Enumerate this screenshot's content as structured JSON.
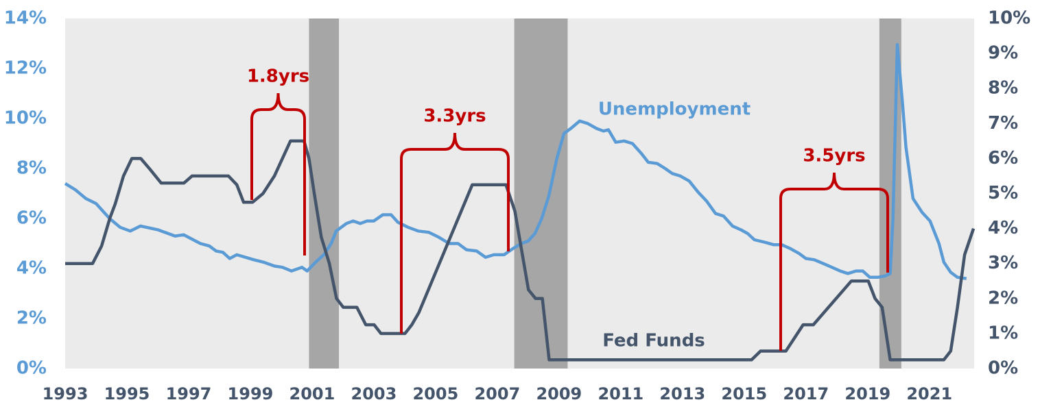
{
  "chart_data": {
    "type": "line",
    "xlim": [
      1993,
      2022.45
    ],
    "xticks": [
      1993,
      1995,
      1997,
      1999,
      2001,
      2003,
      2005,
      2007,
      2009,
      2011,
      2013,
      2015,
      2017,
      2019,
      2021
    ],
    "ylim": [
      0,
      14
    ],
    "yticks": [
      {
        "value": 0,
        "label": "0%"
      },
      {
        "value": 2,
        "label": "2%"
      },
      {
        "value": 4,
        "label": "4%"
      },
      {
        "value": 6,
        "label": "6%"
      },
      {
        "value": 8,
        "label": "8%"
      },
      {
        "value": 10,
        "label": "10%"
      },
      {
        "value": 12,
        "label": "12%"
      },
      {
        "value": 14,
        "label": "14%"
      }
    ],
    "y2lim": [
      0,
      10
    ],
    "y2ticks": [
      {
        "value": 0,
        "label": "0%"
      },
      {
        "value": 1,
        "label": "1%"
      },
      {
        "value": 2,
        "label": "2%"
      },
      {
        "value": 3,
        "label": "3%"
      },
      {
        "value": 4,
        "label": "4%"
      },
      {
        "value": 5,
        "label": "5%"
      },
      {
        "value": 6,
        "label": "6%"
      },
      {
        "value": 7,
        "label": "7%"
      },
      {
        "value": 8,
        "label": "8%"
      },
      {
        "value": 9,
        "label": "9%"
      },
      {
        "value": 10,
        "label": "10%"
      }
    ],
    "shaded_ranges": [
      [
        2000.9,
        2001.87
      ],
      [
        2007.55,
        2009.28
      ],
      [
        2019.38,
        2020.09
      ]
    ],
    "shade_color": "#a6a6a6",
    "background": "#ebebeb",
    "series": [
      {
        "name": "Unemployment",
        "color": "#5b9bd5",
        "x": [
          1993.0,
          1993.33,
          1993.67,
          1994.0,
          1994.44,
          1994.78,
          1995.11,
          1995.44,
          1996.0,
          1996.56,
          1996.84,
          1997.38,
          1997.67,
          1997.89,
          1998.11,
          1998.33,
          1998.56,
          1999.11,
          1999.44,
          1999.78,
          2000.04,
          2000.33,
          2000.67,
          2000.84,
          2001.11,
          2001.38,
          2001.62,
          2001.78,
          2002.11,
          2002.33,
          2002.56,
          2002.78,
          2003.0,
          2003.29,
          2003.56,
          2003.78,
          2004.11,
          2004.44,
          2004.78,
          2005.11,
          2005.44,
          2005.73,
          2006.0,
          2006.33,
          2006.62,
          2006.89,
          2007.22,
          2007.51,
          2007.78,
          2008.0,
          2008.22,
          2008.44,
          2008.67,
          2008.93,
          2009.16,
          2009.38,
          2009.67,
          2009.93,
          2010.22,
          2010.44,
          2010.6,
          2010.84,
          2011.11,
          2011.38,
          2011.67,
          2011.89,
          2012.18,
          2012.44,
          2012.67,
          2012.93,
          2013.22,
          2013.51,
          2013.78,
          2014.07,
          2014.33,
          2014.62,
          2014.89,
          2015.11,
          2015.33,
          2015.67,
          2015.96,
          2016.22,
          2016.49,
          2016.78,
          2017.0,
          2017.27,
          2017.56,
          2017.84,
          2018.11,
          2018.36,
          2018.62,
          2018.84,
          2019.07,
          2019.33,
          2019.56,
          2019.73,
          2019.82,
          2019.96,
          2020.13,
          2020.24,
          2020.47,
          2020.76,
          2021.02,
          2021.31,
          2021.47,
          2021.69,
          2021.91,
          2022.2
        ],
        "values": [
          7.4,
          7.15,
          6.8,
          6.6,
          6.0,
          5.65,
          5.5,
          5.7,
          5.55,
          5.3,
          5.35,
          5.0,
          4.9,
          4.7,
          4.65,
          4.4,
          4.55,
          4.35,
          4.25,
          4.1,
          4.05,
          3.9,
          4.05,
          3.9,
          4.25,
          4.55,
          5.0,
          5.5,
          5.8,
          5.9,
          5.8,
          5.9,
          5.9,
          6.15,
          6.15,
          5.85,
          5.65,
          5.5,
          5.45,
          5.25,
          5.0,
          5.0,
          4.75,
          4.7,
          4.45,
          4.55,
          4.55,
          4.8,
          5.0,
          5.1,
          5.4,
          6.0,
          6.9,
          8.4,
          9.4,
          9.6,
          9.9,
          9.8,
          9.6,
          9.5,
          9.55,
          9.05,
          9.1,
          9.0,
          8.6,
          8.25,
          8.2,
          8.0,
          7.8,
          7.7,
          7.5,
          7.05,
          6.7,
          6.2,
          6.1,
          5.7,
          5.55,
          5.4,
          5.15,
          5.05,
          4.95,
          4.95,
          4.8,
          4.6,
          4.4,
          4.35,
          4.2,
          4.05,
          3.9,
          3.8,
          3.9,
          3.9,
          3.65,
          3.65,
          3.7,
          3.8,
          6.0,
          12.95,
          10.6,
          8.85,
          6.8,
          6.25,
          5.9,
          5.0,
          4.25,
          3.85,
          3.65,
          3.6
        ]
      },
      {
        "name": "Fed Funds",
        "color": "#44546a",
        "axis": "y2",
        "x": [
          1993.0,
          1993.89,
          1994.18,
          1994.45,
          1994.62,
          1994.89,
          1995.16,
          1995.45,
          1995.74,
          1996.11,
          1996.85,
          1997.11,
          1998.29,
          1998.56,
          1998.78,
          1999.07,
          1999.41,
          1999.78,
          2000.3,
          2000.74,
          2000.9,
          2001.07,
          2001.3,
          2001.56,
          2001.79,
          2002.01,
          2002.45,
          2002.74,
          2003.01,
          2003.23,
          2004.01,
          2004.23,
          2004.46,
          2006.19,
          2007.28,
          2007.57,
          2008.01,
          2008.24,
          2008.46,
          2008.68,
          2015.24,
          2015.53,
          2016.35,
          2016.91,
          2017.24,
          2018.47,
          2019.02,
          2019.24,
          2019.47,
          2019.73,
          2021.47,
          2021.69,
          2021.91,
          2022.14,
          2022.43
        ],
        "values": [
          3.0,
          3.0,
          3.5,
          4.3,
          4.7,
          5.5,
          6.0,
          6.0,
          5.7,
          5.3,
          5.3,
          5.5,
          5.5,
          5.25,
          4.75,
          4.75,
          5.0,
          5.5,
          6.5,
          6.5,
          6.0,
          5.0,
          3.75,
          3.0,
          2.0,
          1.75,
          1.75,
          1.25,
          1.25,
          1.0,
          1.0,
          1.25,
          1.6,
          5.25,
          5.25,
          4.5,
          2.25,
          2.0,
          2.0,
          0.25,
          0.25,
          0.5,
          0.5,
          1.25,
          1.25,
          2.5,
          2.5,
          2.0,
          1.75,
          0.25,
          0.25,
          0.5,
          1.75,
          3.25,
          4.0
        ]
      }
    ],
    "annotations": [
      {
        "text": "1.8yrs",
        "color": "#c00000"
      },
      {
        "text": "3.3yrs",
        "color": "#c00000"
      },
      {
        "text": "3.5yrs",
        "color": "#c00000"
      }
    ]
  }
}
